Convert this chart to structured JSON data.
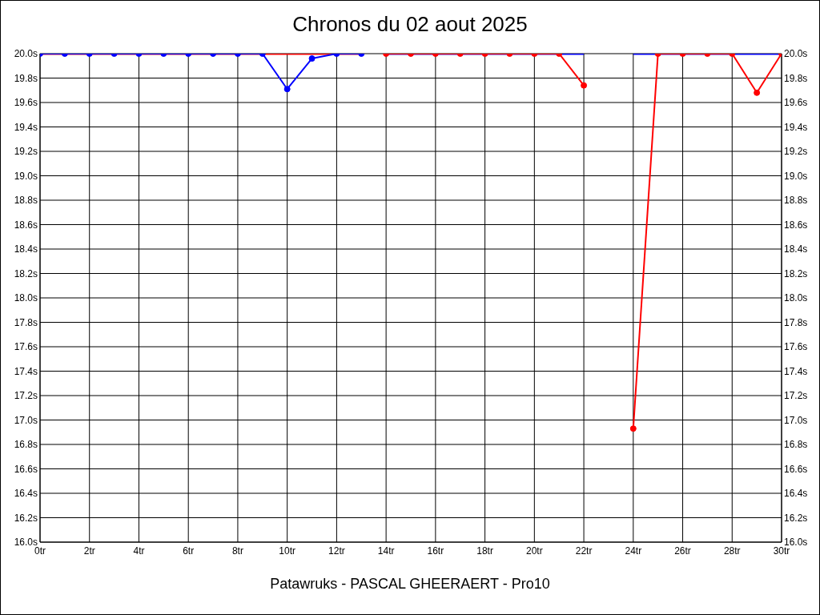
{
  "chart_data": {
    "type": "line",
    "title": "Chronos du 02 aout 2025",
    "xlabel": "Patawruks - PASCAL GHEERAERT - Pro10",
    "xlim": [
      0,
      30
    ],
    "xticks": [
      {
        "value": 0,
        "label": "0tr"
      },
      {
        "value": 2,
        "label": "2tr"
      },
      {
        "value": 4,
        "label": "4tr"
      },
      {
        "value": 6,
        "label": "6tr"
      },
      {
        "value": 8,
        "label": "8tr"
      },
      {
        "value": 10,
        "label": "10tr"
      },
      {
        "value": 12,
        "label": "12tr"
      },
      {
        "value": 14,
        "label": "14tr"
      },
      {
        "value": 16,
        "label": "16tr"
      },
      {
        "value": 18,
        "label": "18tr"
      },
      {
        "value": 20,
        "label": "20tr"
      },
      {
        "value": 22,
        "label": "22tr"
      },
      {
        "value": 24,
        "label": "24tr"
      },
      {
        "value": 26,
        "label": "26tr"
      },
      {
        "value": 28,
        "label": "28tr"
      },
      {
        "value": 30,
        "label": "30tr"
      }
    ],
    "ylim": [
      16,
      20
    ],
    "yticks": [
      {
        "value": 16,
        "label": "16.0s"
      },
      {
        "value": 16.2,
        "label": "16.2s"
      },
      {
        "value": 16.4,
        "label": "16.4s"
      },
      {
        "value": 16.6,
        "label": "16.6s"
      },
      {
        "value": 16.8,
        "label": "16.8s"
      },
      {
        "value": 17,
        "label": "17.0s"
      },
      {
        "value": 17.2,
        "label": "17.2s"
      },
      {
        "value": 17.4,
        "label": "17.4s"
      },
      {
        "value": 17.6,
        "label": "17.6s"
      },
      {
        "value": 17.8,
        "label": "17.8s"
      },
      {
        "value": 18,
        "label": "18.0s"
      },
      {
        "value": 18.2,
        "label": "18.2s"
      },
      {
        "value": 18.4,
        "label": "18.4s"
      },
      {
        "value": 18.6,
        "label": "18.6s"
      },
      {
        "value": 18.8,
        "label": "18.8s"
      },
      {
        "value": 19,
        "label": "19.0s"
      },
      {
        "value": 19.2,
        "label": "19.2s"
      },
      {
        "value": 19.4,
        "label": "19.4s"
      },
      {
        "value": 19.6,
        "label": "19.6s"
      },
      {
        "value": 19.8,
        "label": "19.8s"
      },
      {
        "value": 20,
        "label": "20.0s"
      }
    ],
    "y2lim": [
      16,
      20
    ],
    "y2ticks": [
      {
        "value": 16,
        "label": "16.0s"
      },
      {
        "value": 16.2,
        "label": "16.2s"
      },
      {
        "value": 16.4,
        "label": "16.4s"
      },
      {
        "value": 16.6,
        "label": "16.6s"
      },
      {
        "value": 16.8,
        "label": "16.8s"
      },
      {
        "value": 17,
        "label": "17.0s"
      },
      {
        "value": 17.2,
        "label": "17.2s"
      },
      {
        "value": 17.4,
        "label": "17.4s"
      },
      {
        "value": 17.6,
        "label": "17.6s"
      },
      {
        "value": 17.8,
        "label": "17.8s"
      },
      {
        "value": 18,
        "label": "18.0s"
      },
      {
        "value": 18.2,
        "label": "18.2s"
      },
      {
        "value": 18.4,
        "label": "18.4s"
      },
      {
        "value": 18.6,
        "label": "18.6s"
      },
      {
        "value": 18.8,
        "label": "18.8s"
      },
      {
        "value": 19,
        "label": "19.0s"
      },
      {
        "value": 19.2,
        "label": "19.2s"
      },
      {
        "value": 19.4,
        "label": "19.4s"
      },
      {
        "value": 19.6,
        "label": "19.6s"
      },
      {
        "value": 19.8,
        "label": "19.8s"
      },
      {
        "value": 20,
        "label": "20.0s"
      }
    ],
    "grid": true,
    "line_style": "solid",
    "series": [
      {
        "color": "#0000ff",
        "marker": "none",
        "x": [
          14,
          15,
          16,
          17,
          18,
          19,
          20,
          21,
          22,
          23,
          24,
          25,
          26,
          27,
          28,
          29,
          30
        ],
        "values": [
          20,
          20,
          20,
          20,
          20,
          20,
          20,
          20,
          20,
          null,
          20,
          20,
          20,
          20,
          20,
          20,
          20
        ]
      },
      {
        "color": "#ff0000",
        "marker": "circle",
        "x": [
          14,
          15,
          16,
          17,
          18,
          19,
          20,
          21,
          22,
          23,
          24,
          25,
          26,
          27,
          28,
          29,
          30
        ],
        "values": [
          20,
          20,
          20,
          20,
          20,
          20,
          20,
          20,
          19.74,
          null,
          16.93,
          20,
          20,
          20,
          20,
          19.68,
          20
        ]
      },
      {
        "color": "#ff0000",
        "marker": "none",
        "x": [
          0,
          1,
          2,
          3,
          4,
          5,
          6,
          7,
          8,
          9,
          10,
          11,
          12,
          13
        ],
        "values": [
          20,
          20,
          20,
          20,
          20,
          20,
          20,
          20,
          20,
          20,
          20,
          20,
          20,
          20
        ]
      },
      {
        "color": "#0000ff",
        "marker": "circle",
        "x": [
          0,
          1,
          2,
          3,
          4,
          5,
          6,
          7,
          8,
          9,
          10,
          11,
          12,
          13
        ],
        "values": [
          20,
          20,
          20,
          20,
          20,
          20,
          20,
          20,
          20,
          20,
          19.71,
          19.96,
          20,
          20
        ]
      }
    ]
  }
}
